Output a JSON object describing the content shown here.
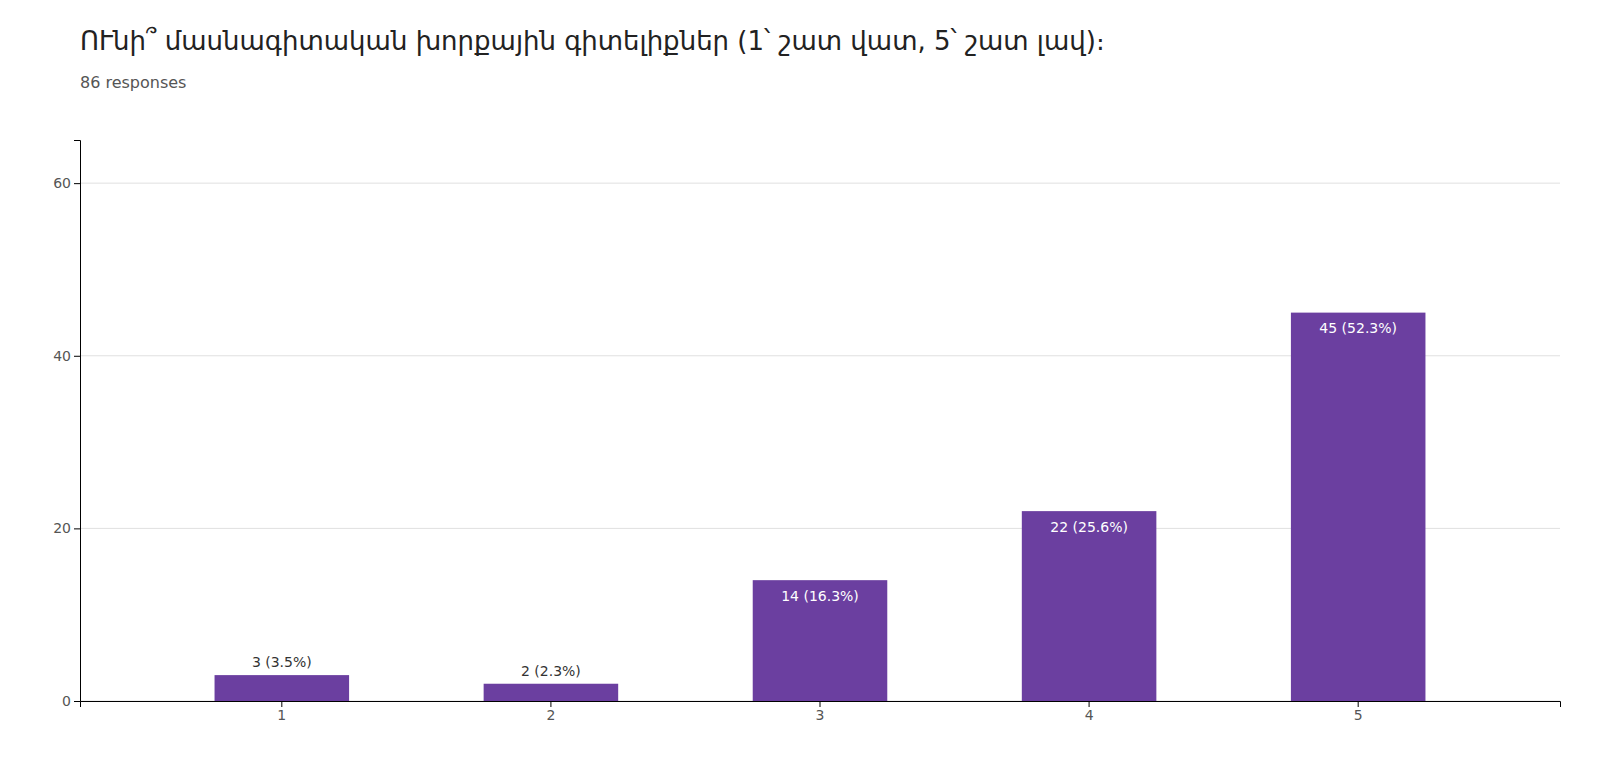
{
  "chart_data": {
    "type": "bar",
    "title": "ՈՒնի՞ մասնագիտական խորքային գիտելիքներ (1՝ շատ վատ, 5՝ շատ լավ)։",
    "subtitle": "86 responses",
    "categories": [
      "1",
      "2",
      "3",
      "4",
      "5"
    ],
    "values": [
      3,
      2,
      14,
      22,
      45
    ],
    "value_labels": [
      "3 (3.5%)",
      "2 (2.3%)",
      "14 (16.3%)",
      "22 (25.6%)",
      "45 (52.3%)"
    ],
    "data_labels": true,
    "color": "#6b3fa0",
    "ylim": [
      0,
      65
    ],
    "yticks": [
      0,
      20,
      40,
      60
    ],
    "grid": true
  }
}
